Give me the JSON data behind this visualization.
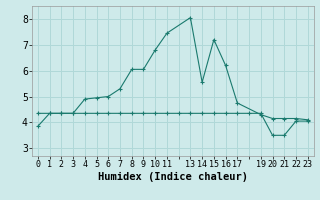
{
  "xlabel": "Humidex (Indice chaleur)",
  "bg_color": "#ceeaea",
  "line_color": "#1a7a6e",
  "xlim": [
    -0.5,
    23.5
  ],
  "ylim": [
    2.7,
    8.5
  ],
  "yticks": [
    3,
    4,
    5,
    6,
    7,
    8
  ],
  "xtick_positions": [
    0,
    1,
    2,
    3,
    4,
    5,
    6,
    7,
    8,
    9,
    10,
    11,
    13,
    14,
    15,
    16,
    17,
    19,
    20,
    21,
    22,
    23
  ],
  "xtick_labels": [
    "0",
    "1",
    "2",
    "3",
    "4",
    "5",
    "6",
    "7",
    "8",
    "9",
    "10",
    "11",
    "13",
    "14",
    "15",
    "16",
    "17",
    "19",
    "20",
    "21",
    "22",
    "23"
  ],
  "line1_x": [
    0,
    1,
    2,
    3,
    4,
    5,
    6,
    7,
    8,
    9,
    10,
    11,
    13,
    14,
    15,
    16,
    17,
    19,
    20,
    21,
    22,
    23
  ],
  "line1_y": [
    3.85,
    4.35,
    4.35,
    4.35,
    4.9,
    4.95,
    5.0,
    5.3,
    6.05,
    6.05,
    6.8,
    7.45,
    8.05,
    5.55,
    7.2,
    6.2,
    4.75,
    4.3,
    4.15,
    4.15,
    4.15,
    4.1
  ],
  "line2_x": [
    0,
    1,
    2,
    3,
    4,
    5,
    6,
    7,
    8,
    9,
    10,
    11,
    12,
    13,
    14,
    15,
    16,
    17,
    18,
    19,
    20,
    21,
    22,
    23
  ],
  "line2_y": [
    4.35,
    4.35,
    4.35,
    4.35,
    4.35,
    4.35,
    4.35,
    4.35,
    4.35,
    4.35,
    4.35,
    4.35,
    4.35,
    4.35,
    4.35,
    4.35,
    4.35,
    4.35,
    4.35,
    4.35,
    3.5,
    3.5,
    4.05,
    4.05
  ],
  "grid_color": "#b0d8d8",
  "tick_fontsize": 6,
  "xlabel_fontsize": 7.5
}
